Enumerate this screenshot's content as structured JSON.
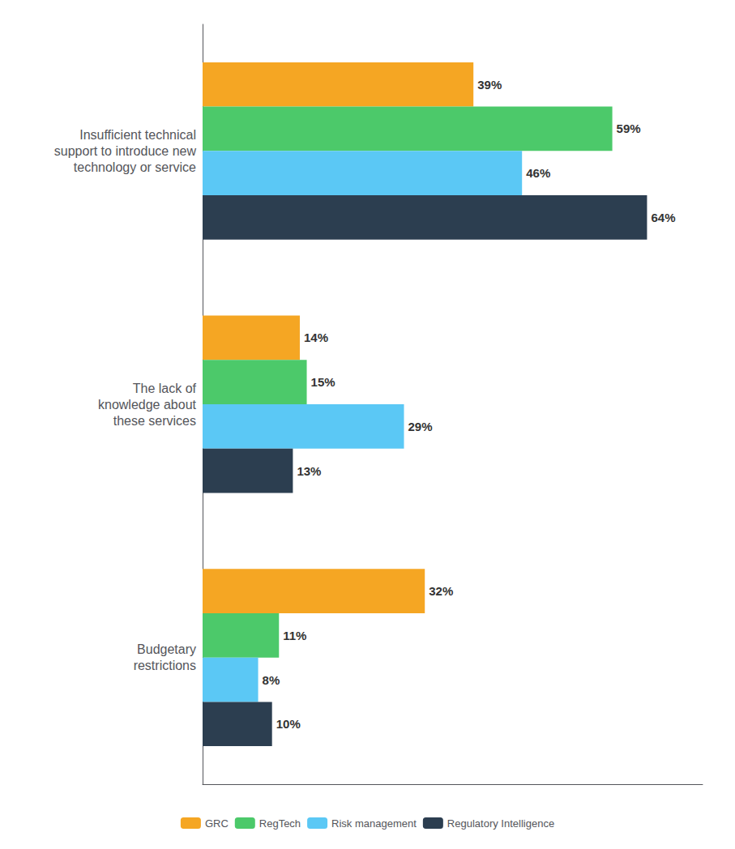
{
  "chart_data": {
    "type": "bar",
    "orientation": "horizontal",
    "categories": [
      "Insufficient technical\nsupport to introduce new\ntechnology or service",
      "The lack of\nknowledge about\nthese services",
      "Budgetary\nrestrictions"
    ],
    "series": [
      {
        "name": "GRC",
        "color": "#F5A623",
        "values": [
          39,
          14,
          32
        ],
        "value_labels": [
          "39%",
          "14%",
          "32%"
        ]
      },
      {
        "name": "RegTech",
        "color": "#4CC96A",
        "values": [
          59,
          15,
          11
        ],
        "value_labels": [
          "59%",
          "15%",
          "11%"
        ]
      },
      {
        "name": "Risk management",
        "color": "#5BC8F5",
        "values": [
          46,
          29,
          8
        ],
        "value_labels": [
          "46%",
          "29%",
          "8%"
        ]
      },
      {
        "name": "Regulatory Intelligence",
        "color": "#2C3E50",
        "values": [
          64,
          13,
          10
        ],
        "value_labels": [
          "64%",
          "13%",
          "10%"
        ]
      }
    ],
    "xlim": [
      0,
      72
    ],
    "data_labels": true,
    "tick_labels": "y",
    "grid": false,
    "legend": "bottom"
  }
}
